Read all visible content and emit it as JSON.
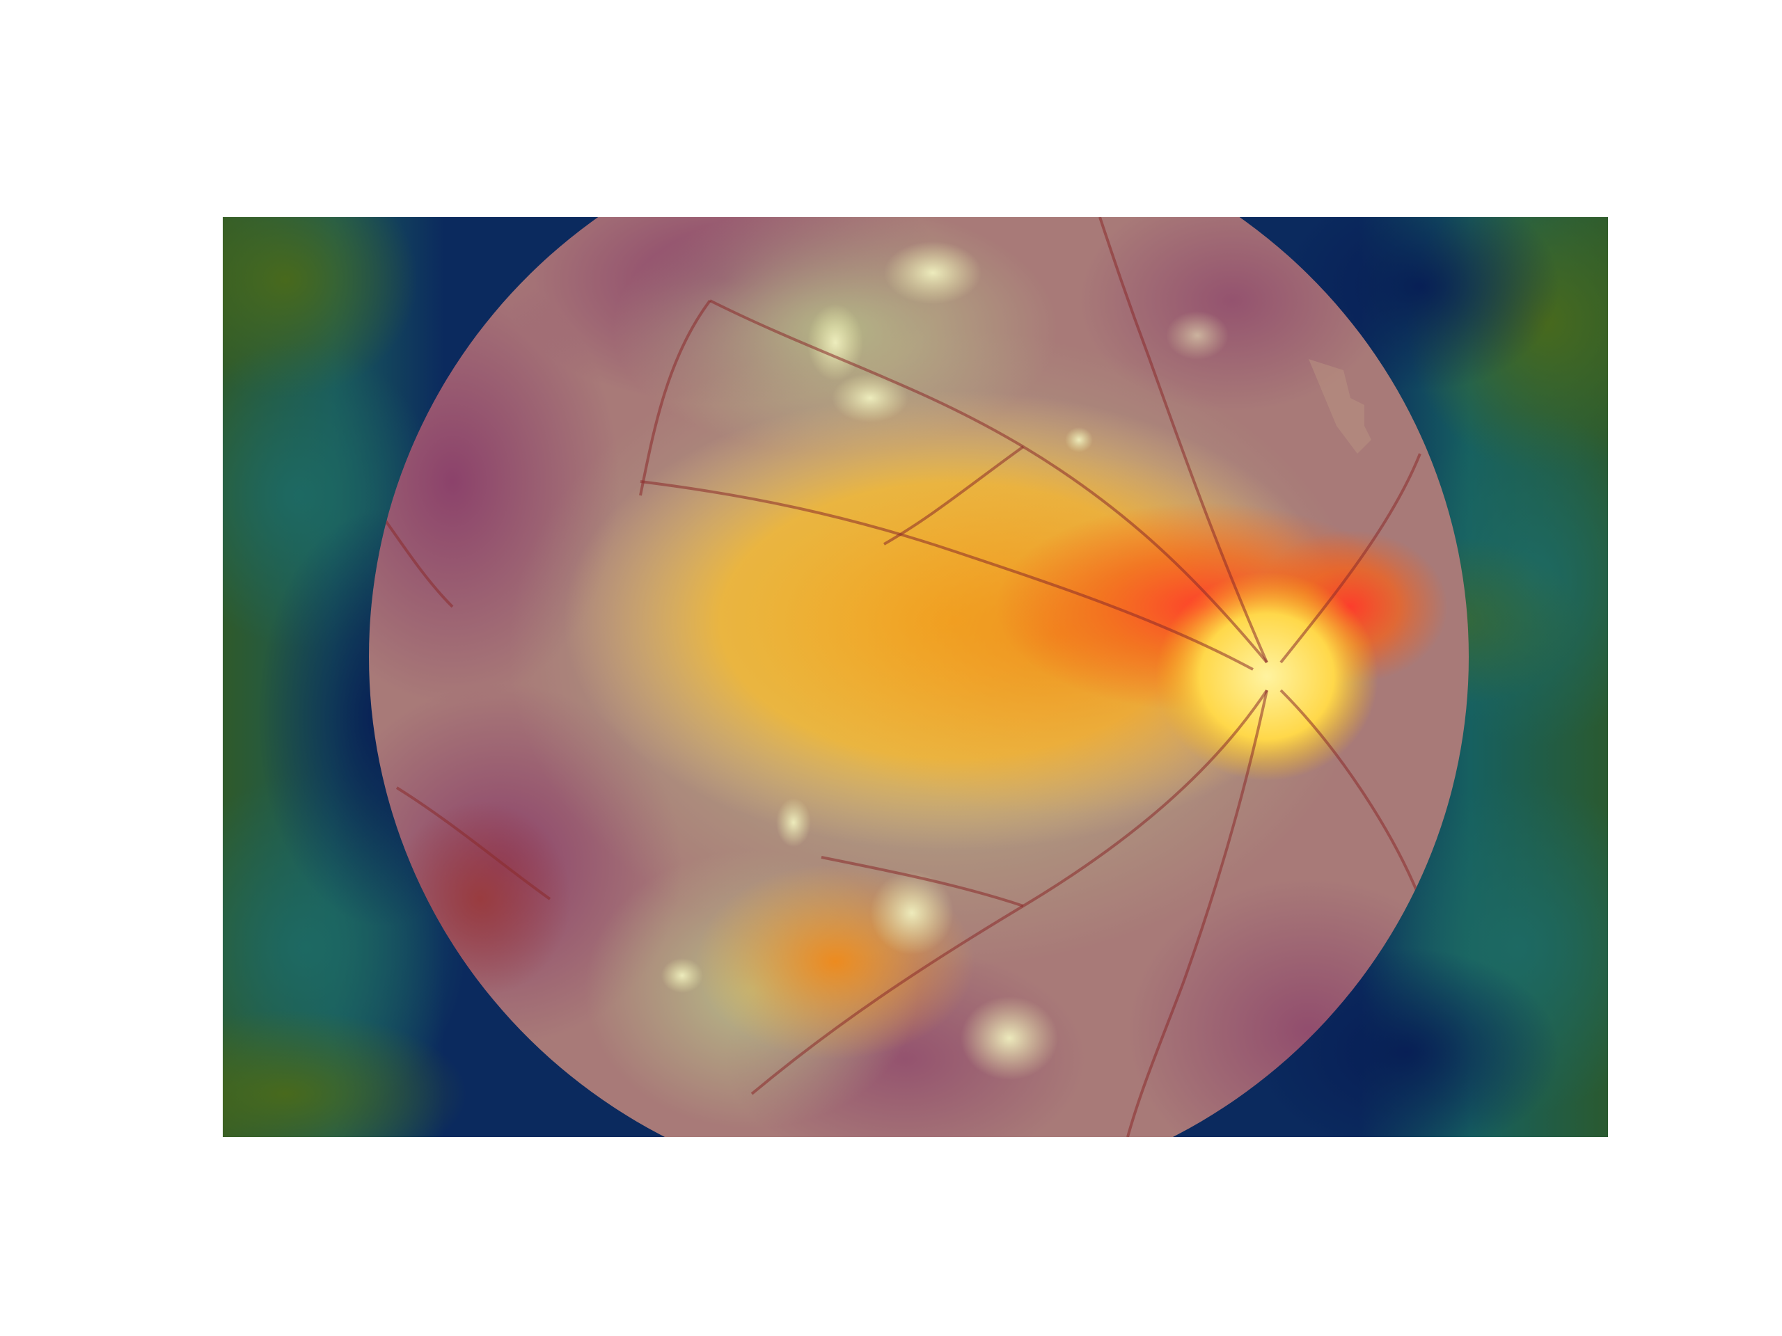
{
  "image": {
    "kind": "retinal fundus photograph with heatmap overlay",
    "colormap": [
      "#0a1f5c",
      "#0f5a66",
      "#3f8a3a",
      "#b8c04a",
      "#f2b21a",
      "#f5711c",
      "#e8323a"
    ],
    "background_color": "#ffffff"
  }
}
